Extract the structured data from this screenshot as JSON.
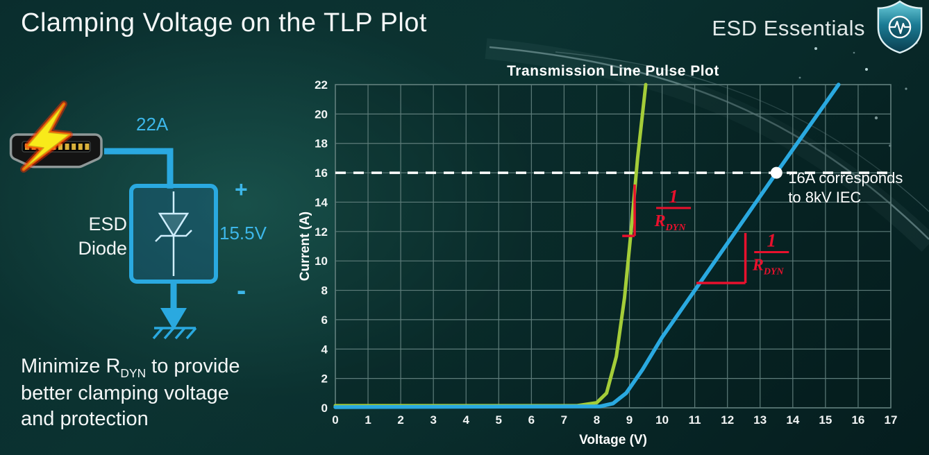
{
  "slide": {
    "title": "Clamping Voltage on the TLP Plot",
    "brand": "ESD Essentials"
  },
  "icons": {
    "shield_icon": "shield-with-ecg-pulse",
    "lightning_icon": "lightning-bolt",
    "connector_icon": "hdmi-port",
    "ground_icon": "earth-ground",
    "marker_icon": "white-dot"
  },
  "diagram": {
    "surge_current_label": "22A",
    "device_name_line1": "ESD",
    "device_name_line2": "Diode",
    "polarity_plus": "+",
    "clamping_voltage_label": "15.5V",
    "polarity_minus": "-"
  },
  "caption": {
    "line1_prefix": "Minimize R",
    "line1_sub": "DYN",
    "line1_suffix": " to provide",
    "line2": "better clamping voltage",
    "line3": "and protection"
  },
  "colors": {
    "background_dark": "#051d1e",
    "background_mid": "#0e3a37",
    "accent_cyan": "#2aa9e0",
    "curve_green": "#a4cd39",
    "annotation_red": "#e8112d",
    "text_white": "#f2f5f5"
  },
  "chart_data": {
    "type": "line",
    "title": "Transmission Line Pulse Plot",
    "xlabel": "Voltage (V)",
    "ylabel": "Current (A)",
    "xlim": [
      0,
      17
    ],
    "ylim": [
      0,
      22
    ],
    "xticks": [
      0,
      1,
      2,
      3,
      4,
      5,
      6,
      7,
      8,
      9,
      10,
      11,
      12,
      13,
      14,
      15,
      16,
      17
    ],
    "yticks": [
      0,
      2,
      4,
      6,
      8,
      10,
      12,
      14,
      16,
      18,
      20,
      22
    ],
    "grid": true,
    "grid_color": "#5e7c7a",
    "legend": "none",
    "series": [
      {
        "id": "low-rdyn-diode-green",
        "color": "#a4cd39",
        "stroke_width": 5,
        "points": [
          [
            0,
            0.15
          ],
          [
            7.4,
            0.15
          ],
          [
            8.0,
            0.35
          ],
          [
            8.3,
            1.0
          ],
          [
            8.6,
            3.5
          ],
          [
            8.85,
            7.5
          ],
          [
            9.05,
            12.0
          ],
          [
            9.25,
            17.0
          ],
          [
            9.5,
            22
          ]
        ]
      },
      {
        "id": "high-rdyn-diode-blue",
        "color": "#2aa9e0",
        "stroke_width": 5.5,
        "points": [
          [
            0,
            0.05
          ],
          [
            8.1,
            0.1
          ],
          [
            8.5,
            0.3
          ],
          [
            8.9,
            1.0
          ],
          [
            9.4,
            2.6
          ],
          [
            10,
            4.8
          ],
          [
            11,
            8.0
          ],
          [
            12,
            11.2
          ],
          [
            13.5,
            16.0
          ],
          [
            15.4,
            22
          ]
        ]
      }
    ],
    "reference_line": {
      "y": 16,
      "color": "#ffffff",
      "style": "dashed"
    },
    "marker_point": {
      "x": 13.5,
      "y": 16,
      "color": "#ffffff",
      "label_line1": "16A corresponds",
      "label_line2": "to 8kV IEC"
    },
    "slope_annotations": [
      {
        "id": "slope-annotation-green",
        "color": "#e8112d",
        "vline": {
          "x": 9.16,
          "y1": 11.7,
          "y2": 15.2
        },
        "hline": {
          "y": 11.7,
          "x1": 8.78,
          "x2": 9.16
        },
        "fraction": {
          "numerator": "1",
          "denominator": "R",
          "denominator_sub": "DYN",
          "cx": 10.35,
          "cy": 13.6
        }
      },
      {
        "id": "slope-annotation-blue",
        "color": "#e8112d",
        "vline": {
          "x": 12.55,
          "y1": 8.5,
          "y2": 11.9
        },
        "hline": {
          "y": 8.5,
          "x1": 11.05,
          "x2": 12.55
        },
        "fraction": {
          "numerator": "1",
          "denominator": "R",
          "denominator_sub": "DYN",
          "cx": 13.35,
          "cy": 10.6
        }
      }
    ]
  }
}
